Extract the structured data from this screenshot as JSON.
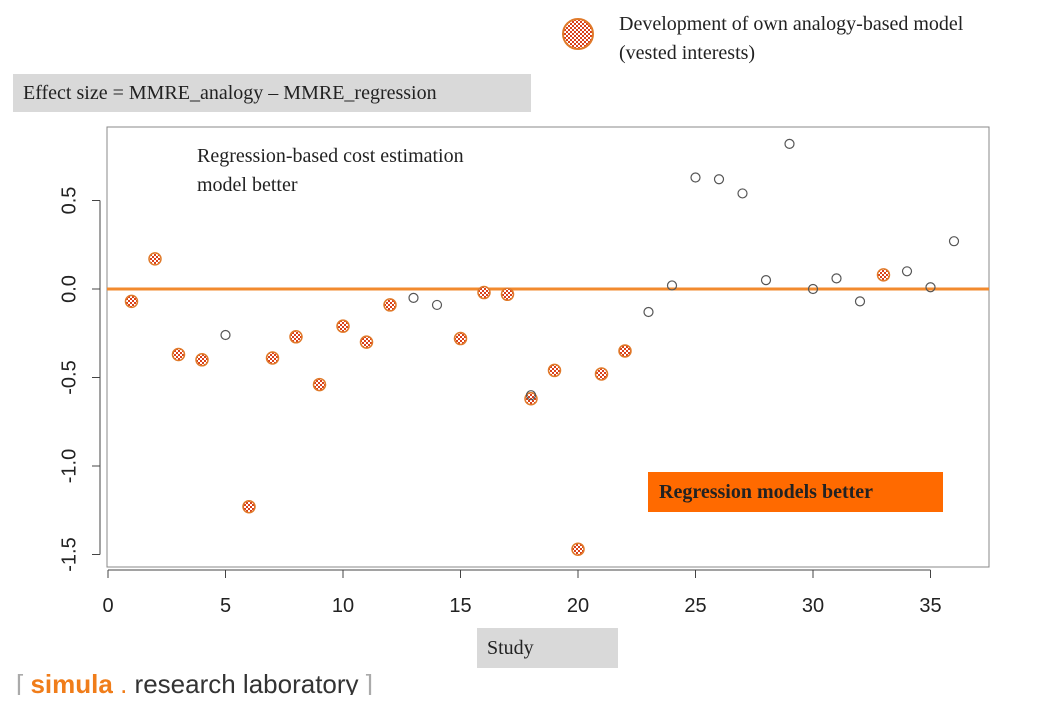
{
  "legend": {
    "text": "Development of own analogy-based model (vested interests)",
    "marker_icon": "checkered-circle-icon"
  },
  "annotations": {
    "effect_size": "Effect size = MMRE_analogy – MMRE_regression",
    "regression_cost_better": "Regression-based cost estimation model better",
    "regression_models_better": "Regression models better",
    "xlabel": "Study"
  },
  "footer": {
    "bracket_open": "[",
    "brand": "simula",
    "dot": ".",
    "rest": "research laboratory",
    "bracket_close": "]"
  },
  "colors": {
    "reference_line": "#f28a2e",
    "marker_red": "#d9401a",
    "marker_white": "#ffffff",
    "open_circle": "#555555",
    "orange_box": "#ff6a00",
    "grey_box": "#d9d9d9"
  },
  "chart_data": {
    "type": "scatter",
    "title": "",
    "xlabel": "Study",
    "ylabel": "",
    "xlim": [
      0,
      37
    ],
    "ylim": [
      -1.55,
      0.9
    ],
    "xticks": [
      0,
      5,
      10,
      15,
      20,
      25,
      30,
      35
    ],
    "yticks": [
      -1.5,
      -1.0,
      -0.5,
      0.0,
      0.5
    ],
    "ytick_labels": [
      "-1.5",
      "-1.0",
      "-0.5",
      "0.0",
      "0.5"
    ],
    "reference_line_y": 0,
    "legend": "top-right",
    "series": [
      {
        "name": "Development of own analogy-based model (vested interests)",
        "marker": "checkered",
        "points": [
          [
            1,
            -0.07
          ],
          [
            2,
            0.17
          ],
          [
            3,
            -0.37
          ],
          [
            4,
            -0.4
          ],
          [
            6,
            -1.23
          ],
          [
            7,
            -0.39
          ],
          [
            8,
            -0.27
          ],
          [
            9,
            -0.54
          ],
          [
            10,
            -0.21
          ],
          [
            11,
            -0.3
          ],
          [
            12,
            -0.09
          ],
          [
            15,
            -0.28
          ],
          [
            16,
            -0.02
          ],
          [
            17,
            -0.03
          ],
          [
            18,
            -0.62
          ],
          [
            19,
            -0.46
          ],
          [
            20,
            -1.47
          ],
          [
            21,
            -0.48
          ],
          [
            22,
            -0.35
          ],
          [
            33,
            0.08
          ]
        ]
      },
      {
        "name": "",
        "marker": "open-circle",
        "points": [
          [
            5,
            -0.26
          ],
          [
            13,
            -0.05
          ],
          [
            14,
            -0.09
          ],
          [
            18,
            -0.6
          ],
          [
            23,
            -0.13
          ],
          [
            24,
            0.02
          ],
          [
            25,
            0.63
          ],
          [
            26,
            0.62
          ],
          [
            27,
            0.54
          ],
          [
            28,
            0.05
          ],
          [
            29,
            0.82
          ],
          [
            30,
            0.0
          ],
          [
            31,
            0.06
          ],
          [
            32,
            -0.07
          ],
          [
            34,
            0.1
          ],
          [
            35,
            0.01
          ],
          [
            36,
            0.27
          ]
        ]
      }
    ]
  }
}
